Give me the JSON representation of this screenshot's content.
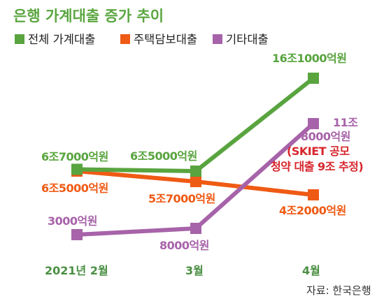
{
  "chart_data": {
    "type": "line",
    "title": "은행 가계대출 증가 추이",
    "categories": [
      "2021년 2월",
      "3월",
      "4월"
    ],
    "series": [
      {
        "name": "전체 가계대출",
        "color": "#59a43f",
        "values": [
          67000,
          65000,
          161000
        ],
        "labels": [
          "6조7000억원",
          "6조5000억원",
          "16조1000억원"
        ]
      },
      {
        "name": "주택담보대출",
        "color": "#ef5a14",
        "values": [
          65000,
          57000,
          42000
        ],
        "labels": [
          "6조5000억원",
          "5조7000억원",
          "4조2000억원"
        ]
      },
      {
        "name": "기타대출",
        "color": "#a763a9",
        "values": [
          3000,
          8000,
          118000
        ],
        "labels": [
          "3000억원",
          "8000억원",
          "11조 8000억원"
        ]
      }
    ],
    "annotation": [
      "(SKIET 공모",
      "청약 대출 9조 추정)"
    ],
    "source": "자료: 한국은행",
    "colors": {
      "title": "#5aa640",
      "axis_label": "#4a8f43",
      "annotation": "#d7262c"
    }
  }
}
